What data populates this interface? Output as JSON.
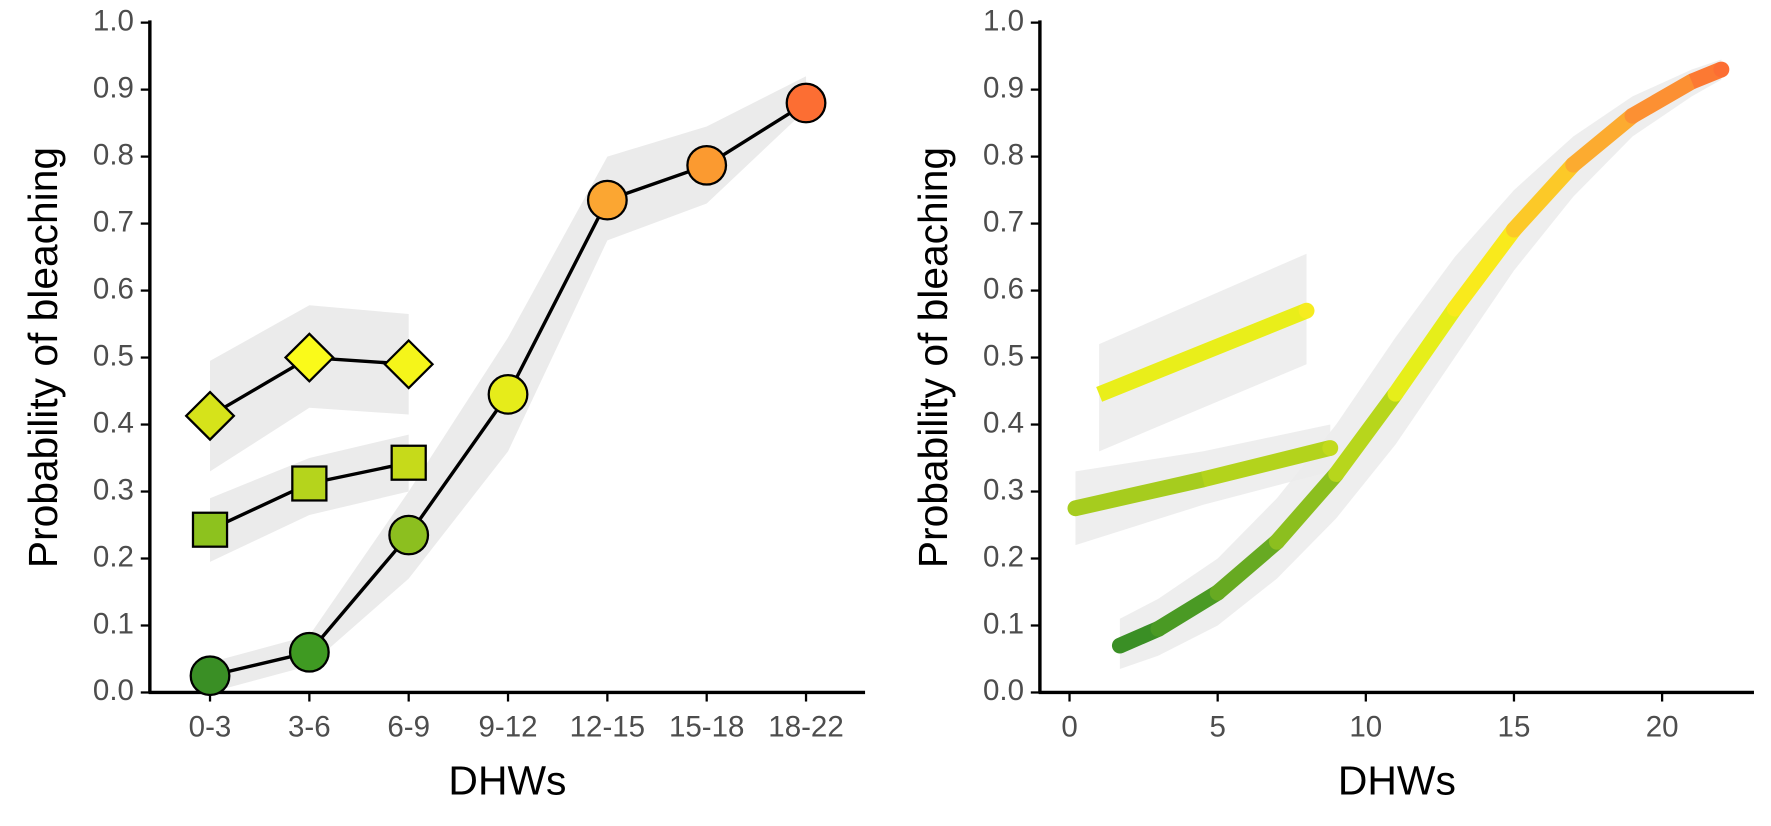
{
  "chart_data": [
    {
      "type": "line",
      "ylabel": "Probability of bleaching",
      "xlabel": "DHWs",
      "categories": [
        "0-3",
        "3-6",
        "6-9",
        "9-12",
        "12-15",
        "15-18",
        "18-22"
      ],
      "ylim": [
        0,
        1
      ],
      "yticks": [
        {
          "value": 0,
          "label": "0.0"
        },
        0.1,
        0.2,
        0.3,
        0.4,
        0.5,
        0.6,
        0.7,
        0.8,
        0.9,
        {
          "value": 1,
          "label": "1.0"
        }
      ],
      "band_color": "#ebebeb",
      "line_color": "#000000",
      "series": [
        {
          "marker": "circle",
          "values": [
            0.025,
            0.06,
            0.235,
            0.445,
            0.735,
            0.787,
            0.88
          ],
          "lower": [
            0.0,
            0.04,
            0.17,
            0.36,
            0.675,
            0.73,
            0.87
          ],
          "upper": [
            0.045,
            0.085,
            0.3,
            0.53,
            0.8,
            0.845,
            0.92
          ],
          "colors": [
            "#3a8f25",
            "#3f9a22",
            "#8cbf1f",
            "#e6ec1a",
            "#fba632",
            "#fb9a30",
            "#fc6e33"
          ]
        },
        {
          "marker": "square",
          "values": [
            0.243,
            0.312,
            0.343,
            null,
            null,
            null,
            null
          ],
          "lower": [
            0.195,
            0.265,
            0.3,
            null,
            null,
            null,
            null
          ],
          "upper": [
            0.29,
            0.35,
            0.385,
            null,
            null,
            null,
            null
          ],
          "colors": [
            "#8dc21e",
            "#b5d41c",
            "#c6da1a",
            null,
            null,
            null,
            null
          ]
        },
        {
          "marker": "diamond",
          "values": [
            0.413,
            0.5,
            0.49,
            null,
            null,
            null,
            null
          ],
          "lower": [
            0.33,
            0.425,
            0.415,
            null,
            null,
            null,
            null
          ],
          "upper": [
            0.495,
            0.578,
            0.565,
            null,
            null,
            null,
            null
          ],
          "colors": [
            "#d6e31a",
            "#fafa1a",
            "#f5f51a",
            null,
            null,
            null,
            null
          ]
        }
      ]
    },
    {
      "type": "curve",
      "ylabel": "Probability of bleaching",
      "xlabel": "DHWs",
      "xlim": [
        -1,
        23.1
      ],
      "xticks": [
        0,
        5,
        10,
        15,
        20
      ],
      "ylim": [
        0,
        1
      ],
      "yticks": [
        {
          "value": 0,
          "label": "0.0"
        },
        0.1,
        0.2,
        0.3,
        0.4,
        0.5,
        0.6,
        0.7,
        0.8,
        0.9,
        {
          "value": 1,
          "label": "1.0"
        }
      ],
      "band_color": "#ebebeb",
      "series": [
        {
          "x": [
            1.7,
            3,
            5,
            7,
            9,
            11,
            13,
            15,
            17,
            19,
            21,
            22
          ],
          "values": [
            0.07,
            0.095,
            0.149,
            0.225,
            0.326,
            0.446,
            0.573,
            0.691,
            0.788,
            0.861,
            0.912,
            0.93
          ],
          "lower": [
            0.035,
            0.055,
            0.1,
            0.17,
            0.26,
            0.37,
            0.5,
            0.63,
            0.74,
            0.83,
            0.89,
            0.915
          ],
          "upper": [
            0.11,
            0.14,
            0.2,
            0.29,
            0.4,
            0.53,
            0.65,
            0.75,
            0.83,
            0.89,
            0.93,
            0.945
          ],
          "colors": [
            "#3a8f25",
            "#4a9a24",
            "#67aa22",
            "#8cbf1f",
            "#b7d61c",
            "#e6ee1a",
            "#f9ea1c",
            "#fcc928",
            "#fcab30",
            "#fc9033",
            "#fc7933",
            "#fc6e33"
          ]
        },
        {
          "x": [
            0.2,
            4.5,
            8.8
          ],
          "values": [
            0.275,
            0.318,
            0.365
          ],
          "lower": [
            0.22,
            0.28,
            0.33
          ],
          "upper": [
            0.33,
            0.36,
            0.4
          ],
          "colors": [
            "#a6cc1e",
            "#b3d31c",
            "#c2da1b"
          ]
        },
        {
          "x": [
            1,
            8
          ],
          "values": [
            0.445,
            0.57
          ],
          "lower": [
            0.36,
            0.49
          ],
          "upper": [
            0.52,
            0.655
          ],
          "colors": [
            "#e9ee1a",
            "#f6ec1f"
          ]
        }
      ]
    }
  ]
}
